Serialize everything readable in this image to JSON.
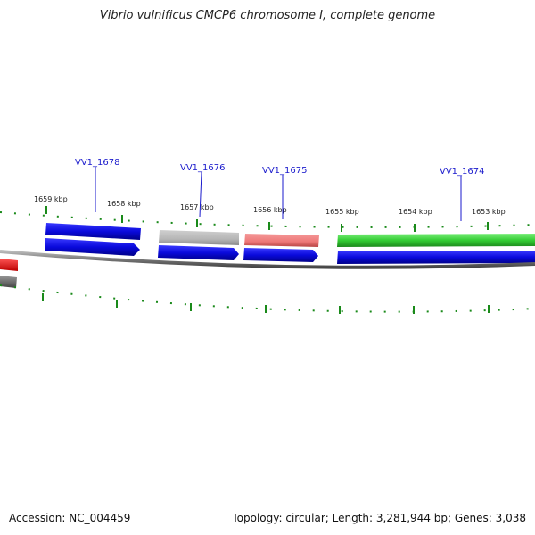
{
  "title": "Vibrio vulnificus CMCP6 chromosome I, complete genome",
  "accession_text": "Accession: NC_004459",
  "summary_text": "Topology: circular; Length: 3,281,944 bp; Genes: 3,038",
  "scale_labels": [
    "1659 kbp",
    "1658 kbp",
    "1657 kbp",
    "1656 kbp",
    "1655 kbp",
    "1654 kbp",
    "1653 kbp"
  ],
  "gene_labels": [
    "VV1_1678",
    "VV1_1676",
    "VV1_1675",
    "VV1_1674"
  ],
  "colors": {
    "forward_blue": "#1010e0",
    "cds_blue": "#0a0adc",
    "pseudo_gray": "#b8b8b8",
    "rna_red": "#ee7777",
    "cds_green": "#33cc33",
    "chromosome_gray": "#888888",
    "tick_green": "#1a8a1a",
    "label_blue": "#1a1acc",
    "marker_red": "#ee1111"
  }
}
